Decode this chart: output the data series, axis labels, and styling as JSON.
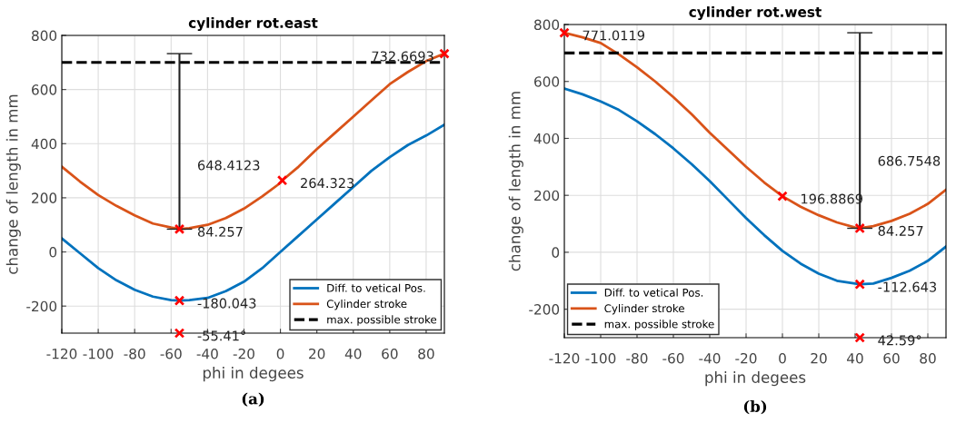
{
  "chart_data": [
    {
      "type": "line",
      "title": "cylinder rot.east",
      "xlabel": "phi in degees",
      "ylabel": "change of length in mm",
      "xlim": [
        -120,
        90
      ],
      "xticks": [
        -120,
        -100,
        -80,
        -60,
        -40,
        -20,
        0,
        20,
        40,
        60,
        80
      ],
      "ylim": [
        -300,
        800
      ],
      "yticks": [
        -200,
        0,
        200,
        400,
        600,
        800
      ],
      "grid": true,
      "legend": "bottom right",
      "series": [
        {
          "name": "Diff. to vetical Pos.",
          "color": "#0072bd",
          "x": [
            -120,
            -110,
            -100,
            -90,
            -80,
            -70,
            -60,
            -55.41,
            -50,
            -40,
            -30,
            -20,
            -10,
            0,
            10,
            20,
            30,
            40,
            50,
            60,
            70,
            80,
            90
          ],
          "values": [
            50,
            -5,
            -60,
            -105,
            -140,
            -165,
            -178,
            -180.043,
            -178,
            -170,
            -145,
            -110,
            -60,
            0,
            60,
            120,
            180,
            240,
            300,
            350,
            395,
            430,
            470
          ]
        },
        {
          "name": "Cylinder stroke",
          "color": "#d95319",
          "x": [
            -120,
            -110,
            -100,
            -90,
            -80,
            -70,
            -60,
            -55.41,
            -50,
            -40,
            -30,
            -20,
            -10,
            0,
            1,
            10,
            20,
            30,
            40,
            50,
            60,
            70,
            80,
            90
          ],
          "values": [
            315,
            260,
            210,
            170,
            135,
            105,
            90,
            84.257,
            88,
            100,
            125,
            160,
            205,
            255,
            264.323,
            315,
            380,
            440,
            500,
            560,
            620,
            665,
            705,
            732.6693
          ]
        },
        {
          "type": "scatter",
          "marker": "cross",
          "color": "#ff0000",
          "x": [
            -55.41,
            -55.41,
            1,
            90,
            -55.41
          ],
          "values": [
            84.257,
            -180.043,
            264.323,
            732.6693,
            -300
          ],
          "errors": [
            [
              84.257,
              732.6693
            ],
            null,
            null,
            null,
            null
          ]
        }
      ],
      "ref_lines": [
        {
          "axis": "y",
          "value": 700,
          "label": "max. possible stroke",
          "color": "#000000",
          "line_style": "dashed"
        }
      ],
      "annotations": [
        {
          "text": "648.4123",
          "x": -55.41,
          "y": 330
        },
        {
          "text": "84.257",
          "x": -55.41,
          "y": 84.257
        },
        {
          "text": "-180.043",
          "x": -55.41,
          "y": -180.043
        },
        {
          "text": "-55.41°",
          "x": -55.41,
          "y": -300
        },
        {
          "text": "264.323",
          "x": 1,
          "y": 264.323
        },
        {
          "text": "732.6693",
          "x": 90,
          "y": 732.6693
        },
        "(a)"
      ]
    },
    {
      "type": "line",
      "title": "cylinder rot.west",
      "xlabel": "phi in degees",
      "ylabel": "change of length in mm",
      "xlim": [
        -120,
        90
      ],
      "xticks": [
        -120,
        -100,
        -80,
        -60,
        -40,
        -20,
        0,
        20,
        40,
        60,
        80
      ],
      "ylim": [
        -300,
        800
      ],
      "yticks": [
        -200,
        0,
        200,
        400,
        600,
        800
      ],
      "grid": true,
      "legend": "bottom left",
      "series": [
        {
          "name": "Diff. to vetical Pos.",
          "color": "#0072bd",
          "x": [
            -120,
            -110,
            -100,
            -90,
            -80,
            -70,
            -60,
            -50,
            -40,
            -30,
            -20,
            -10,
            0,
            10,
            20,
            30,
            40,
            42.59,
            50,
            60,
            70,
            80,
            90
          ],
          "values": [
            575,
            555,
            530,
            500,
            460,
            415,
            365,
            310,
            250,
            185,
            120,
            60,
            5,
            -40,
            -75,
            -100,
            -110,
            -112.643,
            -110,
            -90,
            -65,
            -30,
            20
          ]
        },
        {
          "name": "Cylinder stroke",
          "color": "#d95319",
          "x": [
            -120,
            -110,
            -100,
            -90,
            -80,
            -70,
            -60,
            -50,
            -40,
            -30,
            -20,
            -10,
            0,
            10,
            20,
            30,
            40,
            42.59,
            50,
            60,
            70,
            80,
            90
          ],
          "values": [
            771.0119,
            755,
            735,
            695,
            650,
            600,
            545,
            485,
            420,
            360,
            300,
            245,
            196.8869,
            160,
            130,
            105,
            87,
            84.257,
            92,
            110,
            135,
            170,
            220
          ]
        },
        {
          "type": "scatter",
          "marker": "cross",
          "color": "#ff0000",
          "x": [
            -120,
            0,
            42.59,
            42.59,
            42.59
          ],
          "values": [
            771.0119,
            196.8869,
            84.257,
            -112.643,
            -300
          ],
          "errors": [
            null,
            null,
            [
              84.257,
              771.0119
            ],
            null,
            null
          ]
        }
      ],
      "ref_lines": [
        {
          "axis": "y",
          "value": 700,
          "label": "max. possible stroke",
          "color": "#000000",
          "line_style": "dashed"
        }
      ],
      "annotations": [
        {
          "text": "686.7548",
          "x": 42.59,
          "y": 330
        },
        {
          "text": "84.257",
          "x": 42.59,
          "y": 84.257
        },
        {
          "text": "-112.643",
          "x": 42.59,
          "y": -112.643
        },
        {
          "text": "42.59°",
          "x": 42.59,
          "y": -300
        },
        {
          "text": "196.8869",
          "x": 0,
          "y": 196.8869
        },
        {
          "text": "771.0119",
          "x": -120,
          "y": 771.0119
        },
        "(b)"
      ]
    }
  ]
}
